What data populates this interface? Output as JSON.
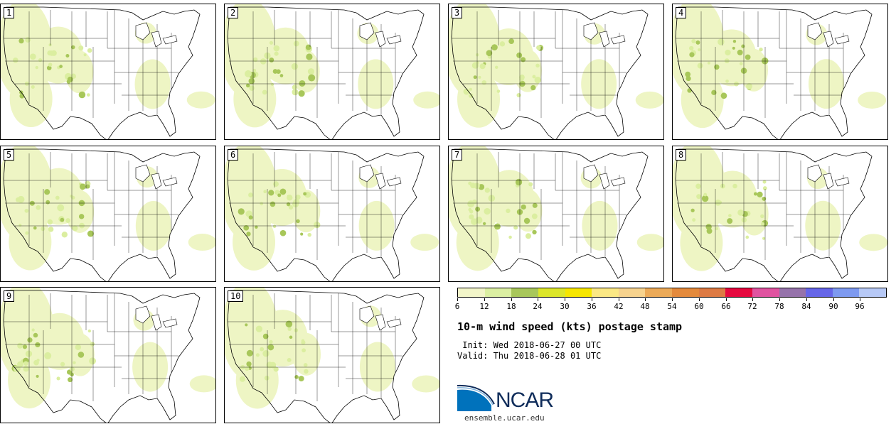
{
  "panels": [
    {
      "label": "1"
    },
    {
      "label": "2"
    },
    {
      "label": "3"
    },
    {
      "label": "4"
    },
    {
      "label": "5"
    },
    {
      "label": "6"
    },
    {
      "label": "7"
    },
    {
      "label": "8"
    },
    {
      "label": "9"
    },
    {
      "label": "10"
    }
  ],
  "colorbar": {
    "colors": [
      "#f2f5c9",
      "#dbefa2",
      "#a8c75a",
      "#dce62a",
      "#f6e600",
      "#fbe884",
      "#f7d38e",
      "#ecaa58",
      "#e48a3c",
      "#dd7a43",
      "#e6093f",
      "#e053a0",
      "#9673ab",
      "#6666e8",
      "#7e9af0",
      "#b7c9f6"
    ],
    "tick_labels": [
      "6",
      "12",
      "18",
      "24",
      "30",
      "36",
      "42",
      "48",
      "54",
      "60",
      "66",
      "72",
      "78",
      "84",
      "90",
      "96"
    ]
  },
  "title": "10-m wind speed (kts) postage stamp",
  "init": " Init: Wed 2018-06-27 00 UTC",
  "valid": "Valid: Thu 2018-06-28 01 UTC",
  "logo": {
    "text": "NCAR",
    "site": "ensemble.ucar.edu",
    "primary_color": "#0072bc",
    "secondary_color": "#0f2c5a"
  },
  "map_colors": {
    "light": "#eef5c4",
    "medium": "#dbeea0",
    "dark": "#a8c75a",
    "lines": "#000000",
    "water": "#ffffff"
  }
}
